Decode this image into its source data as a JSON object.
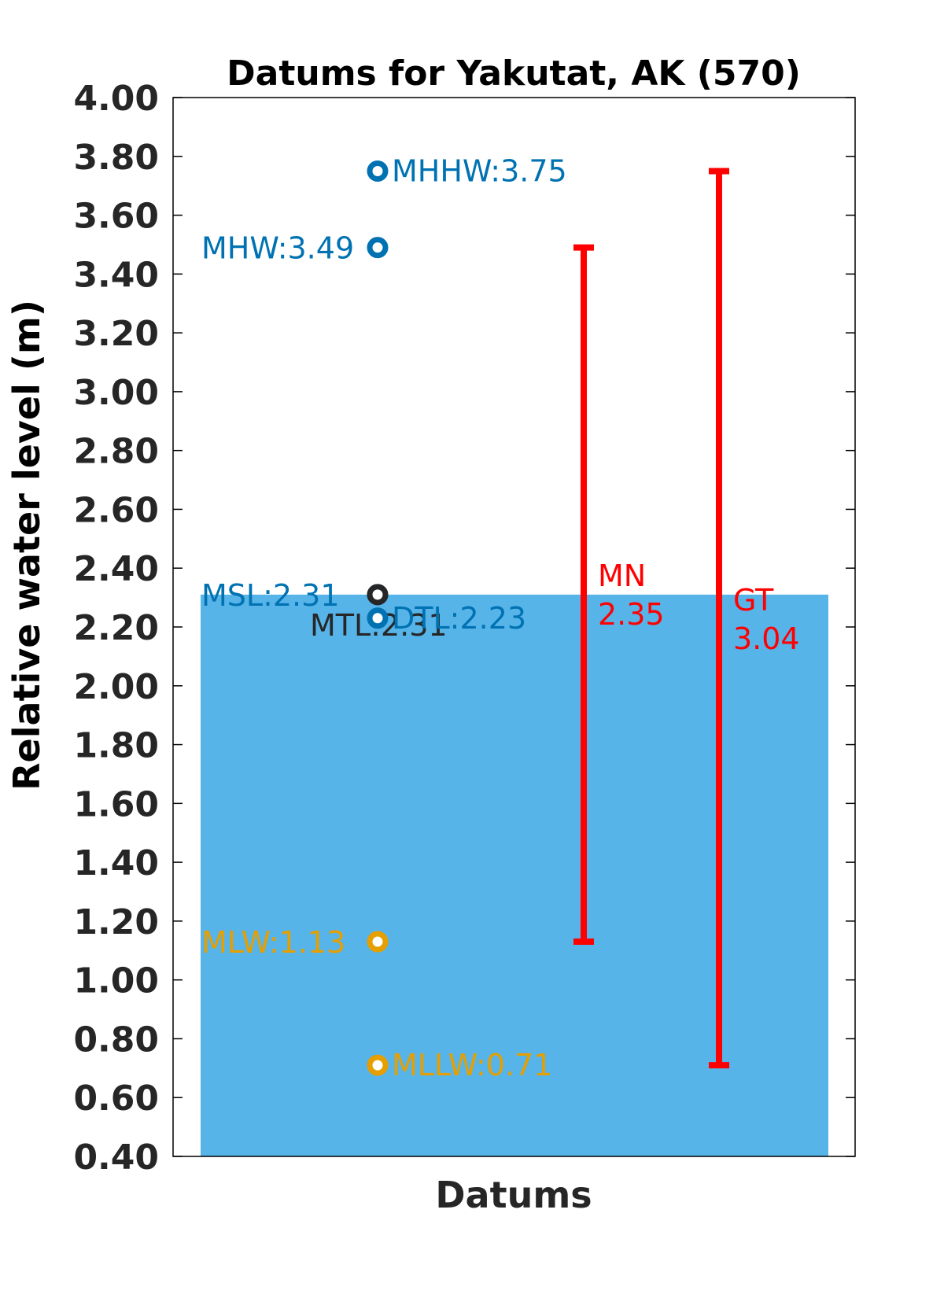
{
  "chart_data": {
    "type": "bar",
    "title": "Datums for Yakutat, AK (570)",
    "xlabel": "Datums",
    "ylabel": "Relative water level (m)",
    "ylim": [
      0.4,
      4.0
    ],
    "yticks": [
      "0.40",
      "0.60",
      "0.80",
      "1.00",
      "1.20",
      "1.40",
      "1.60",
      "1.80",
      "2.00",
      "2.20",
      "2.40",
      "2.60",
      "2.80",
      "3.00",
      "3.20",
      "3.40",
      "3.60",
      "3.80",
      "4.00"
    ],
    "grid": false,
    "bar": {
      "name": "MSL",
      "value": 2.31,
      "color": "#56b4e9"
    },
    "datums": [
      {
        "name": "MHHW",
        "value": 3.75,
        "label": "MHHW:3.75",
        "color": "#0072b2",
        "side": "right"
      },
      {
        "name": "MHW",
        "value": 3.49,
        "label": "MHW:3.49",
        "color": "#0072b2",
        "side": "left"
      },
      {
        "name": "MSL",
        "value": 2.31,
        "label": "MSL:2.31",
        "color": "#0072b2",
        "side": "left"
      },
      {
        "name": "MTL",
        "value": 2.31,
        "label": "MTL:2.31",
        "color": "#262626",
        "side": "below"
      },
      {
        "name": "DTL",
        "value": 2.23,
        "label": "DTL:2.23",
        "color": "#0072b2",
        "side": "right"
      },
      {
        "name": "MLW",
        "value": 1.13,
        "label": "MLW:1.13",
        "color": "#e69f00",
        "side": "left"
      },
      {
        "name": "MLLW",
        "value": 0.71,
        "label": "MLLW:0.71",
        "color": "#e69f00",
        "side": "right"
      }
    ],
    "ranges": [
      {
        "name": "MN",
        "low": 1.13,
        "high": 3.49,
        "value": "2.35",
        "color": "#ff0000"
      },
      {
        "name": "GT",
        "low": 0.71,
        "high": 3.75,
        "value": "3.04",
        "color": "#ff0000"
      }
    ]
  }
}
